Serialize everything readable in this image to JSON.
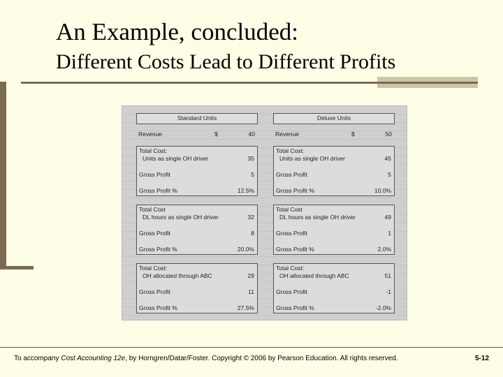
{
  "slide": {
    "title_line1": "An Example, concluded:",
    "title_line2": "Different Costs Lead to Different Profits"
  },
  "sheet": {
    "columns": [
      {
        "header": "Standard Units",
        "revenue_label": "Revenue",
        "currency": "$",
        "revenue": "40",
        "blocks": [
          {
            "cost_label": "Total Cost:",
            "driver": "Units as single OH driver",
            "cost": "35",
            "gp_label": "Gross Profit",
            "gp": "5",
            "pct_label": "Gross Profit %",
            "pct": "12.5%"
          },
          {
            "cost_label": "Total Cost",
            "driver": "DL hours as single OH driver",
            "cost": "32",
            "gp_label": "Gross Profit",
            "gp": "8",
            "pct_label": "Gross Profit %",
            "pct": "20.0%"
          },
          {
            "cost_label": "Total Cost:",
            "driver": "OH allocated through ABC",
            "cost": "29",
            "gp_label": "Gross Profit",
            "gp": "11",
            "pct_label": "Gross Profit %",
            "pct": "27.5%"
          }
        ]
      },
      {
        "header": "Deluxe Units",
        "revenue_label": "Revenue",
        "currency": "$",
        "revenue": "50",
        "blocks": [
          {
            "cost_label": "Total Cost:",
            "driver": "Units as single OH driver",
            "cost": "45",
            "gp_label": "Gross Profit",
            "gp": "5",
            "pct_label": "Gross Profit %",
            "pct": "10.0%"
          },
          {
            "cost_label": "Total Cost",
            "driver": "DL hours as single OH driver",
            "cost": "49",
            "gp_label": "Gross Profit",
            "gp": "1",
            "pct_label": "Gross Profit %",
            "pct": "2.0%"
          },
          {
            "cost_label": "Total Cost:",
            "driver": "OH allocated through ABC",
            "cost": "51",
            "gp_label": "Gross Profit",
            "gp": "-1",
            "pct_label": "Gross Profit %",
            "pct": "-2.0%"
          }
        ]
      }
    ]
  },
  "footer": {
    "text_prefix": "To accompany ",
    "text_italic": "Cost Accounting 12e",
    "text_suffix": ", by Horngren/Datar/Foster. Copyright © 2006 by Pearson Education. All rights reserved.",
    "page": "5-12"
  },
  "colors": {
    "background": "#fefee6",
    "accent": "#7a6a50",
    "sheet_bg": "#cfcfcf"
  }
}
